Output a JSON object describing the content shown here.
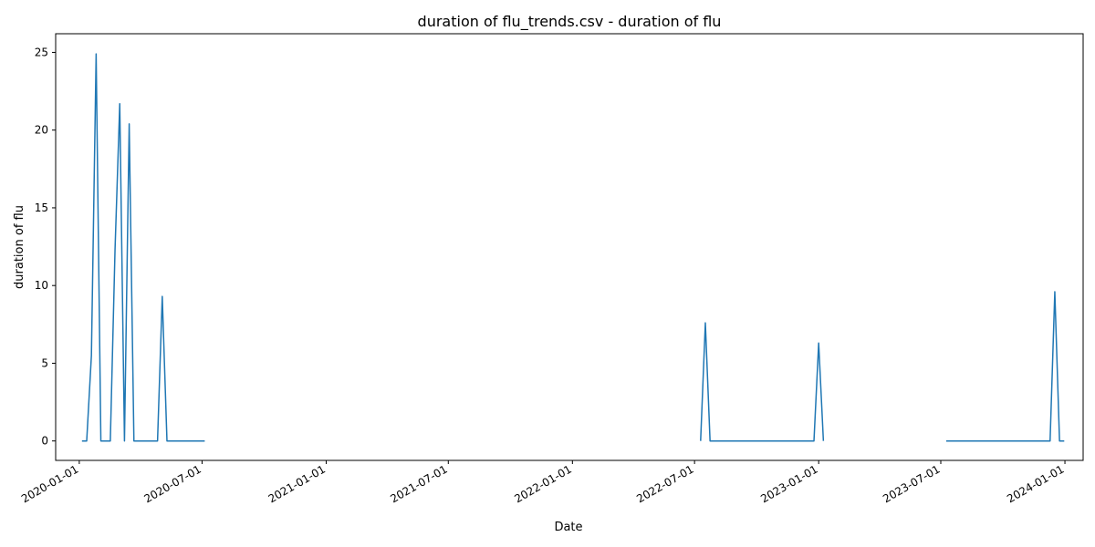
{
  "chart_data": {
    "type": "line",
    "title": "duration of flu_trends.csv - duration of flu",
    "xlabel": "Date",
    "ylabel": "duration of flu",
    "ylim": [
      -1.25,
      26.2
    ],
    "xlim": [
      "2019-11-27",
      "2024-01-28"
    ],
    "yticks": [
      0,
      5,
      10,
      15,
      20,
      25
    ],
    "xticks": [
      "2020-01-01",
      "2020-07-01",
      "2021-01-01",
      "2021-07-01",
      "2022-01-01",
      "2022-07-01",
      "2023-01-01",
      "2023-07-01",
      "2024-01-01"
    ],
    "grid": false,
    "line_color": "#1f77b4",
    "series": [
      {
        "name": "duration of flu",
        "segments": [
          [
            [
              "2020-01-05",
              0
            ],
            [
              "2020-01-12",
              0
            ],
            [
              "2020-01-19",
              5.5
            ],
            [
              "2020-01-26",
              24.9
            ],
            [
              "2020-02-02",
              0
            ],
            [
              "2020-02-09",
              0
            ],
            [
              "2020-02-16",
              0
            ],
            [
              "2020-02-23",
              12.3
            ],
            [
              "2020-03-01",
              21.7
            ],
            [
              "2020-03-08",
              0
            ],
            [
              "2020-03-15",
              20.4
            ],
            [
              "2020-03-22",
              0
            ],
            [
              "2020-03-29",
              0
            ],
            [
              "2020-04-05",
              0
            ],
            [
              "2020-04-12",
              0
            ],
            [
              "2020-04-19",
              0
            ],
            [
              "2020-04-26",
              0
            ],
            [
              "2020-05-03",
              9.3
            ],
            [
              "2020-05-10",
              0
            ],
            [
              "2020-05-17",
              0
            ],
            [
              "2020-05-24",
              0
            ],
            [
              "2020-05-31",
              0
            ],
            [
              "2020-06-07",
              0
            ],
            [
              "2020-06-14",
              0
            ],
            [
              "2020-06-21",
              0
            ],
            [
              "2020-06-28",
              0
            ],
            [
              "2020-07-05",
              0
            ]
          ],
          [
            [
              "2022-07-10",
              0
            ],
            [
              "2022-07-17",
              7.6
            ],
            [
              "2022-07-24",
              0
            ],
            [
              "2022-07-31",
              0
            ],
            [
              "2022-08-14",
              0
            ],
            [
              "2022-09-11",
              0
            ],
            [
              "2022-10-09",
              0
            ],
            [
              "2022-11-06",
              0
            ],
            [
              "2022-12-04",
              0
            ],
            [
              "2022-12-25",
              0
            ],
            [
              "2023-01-01",
              6.3
            ],
            [
              "2023-01-08",
              0
            ]
          ],
          [
            [
              "2023-07-09",
              0
            ],
            [
              "2023-08-06",
              0
            ],
            [
              "2023-09-03",
              0
            ],
            [
              "2023-10-01",
              0
            ],
            [
              "2023-10-29",
              0
            ],
            [
              "2023-11-26",
              0
            ],
            [
              "2023-12-10",
              0
            ],
            [
              "2023-12-17",
              9.6
            ],
            [
              "2023-12-24",
              0
            ],
            [
              "2023-12-31",
              0
            ]
          ]
        ]
      }
    ]
  }
}
